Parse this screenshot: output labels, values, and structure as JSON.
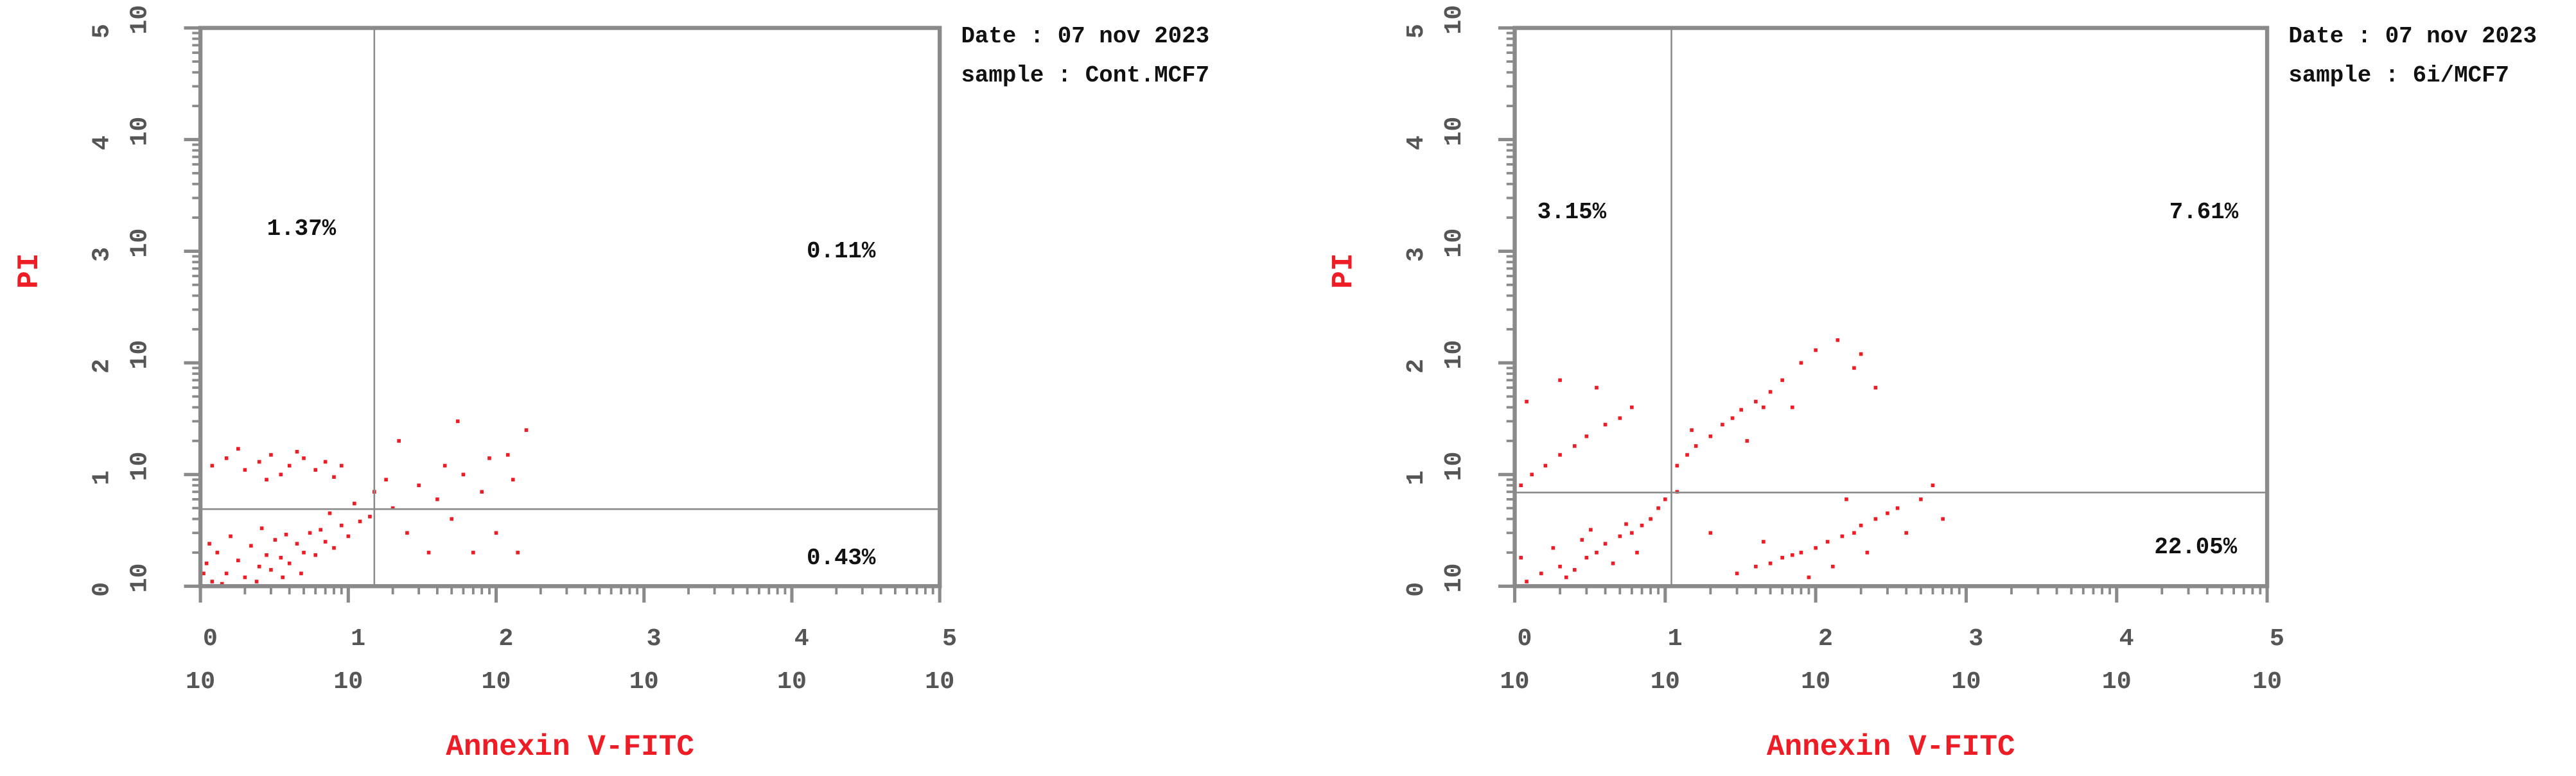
{
  "chart_data": [
    {
      "type": "scatter",
      "header": [
        "Date : 07 nov 2023",
        "sample : Cont.MCF7"
      ],
      "x_label": "Annexin V-FITC",
      "y_label": "PI",
      "log_scale": true,
      "color": "#ee1c24",
      "xlim": [
        1,
        100000
      ],
      "ylim": [
        1,
        100000
      ],
      "xticks": [
        {
          "value": 1,
          "label": "10",
          "exponent": "0"
        },
        {
          "value": 10,
          "label": "10",
          "exponent": "1"
        },
        {
          "value": 100,
          "label": "10",
          "exponent": "2"
        },
        {
          "value": 1000,
          "label": "10",
          "exponent": "3"
        },
        {
          "value": 10000,
          "label": "10",
          "exponent": "4"
        },
        {
          "value": 100000,
          "label": "10",
          "exponent": "5"
        }
      ],
      "yticks": [
        {
          "value": 1,
          "label": "10",
          "exponent": "0"
        },
        {
          "value": 10,
          "label": "10",
          "exponent": "1"
        },
        {
          "value": 100,
          "label": "10",
          "exponent": "2"
        },
        {
          "value": 1000,
          "label": "10",
          "exponent": "3"
        },
        {
          "value": 10000,
          "label": "10",
          "exponent": "4"
        },
        {
          "value": 100000,
          "label": "10",
          "exponent": "5"
        }
      ],
      "gate_x": 15,
      "gate_y": 4.9,
      "quadrant_labels": [
        "1.37%",
        "0.11%",
        "0.43%"
      ],
      "x": [
        1.2,
        1.5,
        2,
        2.5,
        3,
        3.5,
        4,
        5,
        6,
        7,
        8,
        1.1,
        1.3,
        1.8,
        2.2,
        2.8,
        3.2,
        4.5,
        5.5,
        6.5,
        9,
        10,
        12,
        1.4,
        2.4,
        3.6,
        4.8,
        1.6,
        2.6,
        3.8,
        1.05,
        1.15,
        7.5,
        11,
        14,
        1.2,
        1.5,
        2,
        2.5,
        3,
        3.5,
        4,
        5,
        6,
        7,
        9,
        1.8,
        2.8,
        4.5,
        8,
        15,
        18,
        20,
        25,
        30,
        35,
        40,
        45,
        50,
        60,
        70,
        80,
        100,
        120,
        140,
        160,
        130,
        90,
        22,
        55
      ],
      "y": [
        1.1,
        1.3,
        1.2,
        1.5,
        1.4,
        1.8,
        1.6,
        2,
        1.9,
        2.5,
        2.2,
        1.6,
        2,
        1.7,
        2.3,
        1.9,
        2.6,
        2.4,
        3,
        3.2,
        3.5,
        2.8,
        3.8,
        1.05,
        1.1,
        1.2,
        1.3,
        2.8,
        3.3,
        2.9,
        1.3,
        2.4,
        4.5,
        5.5,
        4.2,
        12,
        14,
        11,
        13,
        15,
        10,
        12,
        14,
        11,
        13,
        12,
        17,
        9,
        16,
        9.5,
        7,
        9,
        5,
        3,
        8,
        2,
        6,
        12,
        4,
        10,
        2,
        7,
        3,
        15,
        2,
        25,
        9,
        14,
        20,
        30
      ]
    },
    {
      "type": "scatter",
      "header": [
        "Date : 07 nov 2023",
        "sample : 6i/MCF7"
      ],
      "x_label": "Annexin V-FITC",
      "y_label": "PI",
      "log_scale": true,
      "color": "#ee1c24",
      "xlim": [
        1,
        100000
      ],
      "ylim": [
        1,
        100000
      ],
      "xticks": [
        {
          "value": 1,
          "label": "10",
          "exponent": "0"
        },
        {
          "value": 10,
          "label": "10",
          "exponent": "1"
        },
        {
          "value": 100,
          "label": "10",
          "exponent": "2"
        },
        {
          "value": 1000,
          "label": "10",
          "exponent": "3"
        },
        {
          "value": 10000,
          "label": "10",
          "exponent": "4"
        },
        {
          "value": 100000,
          "label": "10",
          "exponent": "5"
        }
      ],
      "yticks": [
        {
          "value": 1,
          "label": "10",
          "exponent": "0"
        },
        {
          "value": 10,
          "label": "10",
          "exponent": "1"
        },
        {
          "value": 100,
          "label": "10",
          "exponent": "2"
        },
        {
          "value": 1000,
          "label": "10",
          "exponent": "3"
        },
        {
          "value": 10000,
          "label": "10",
          "exponent": "4"
        },
        {
          "value": 100000,
          "label": "10",
          "exponent": "5"
        }
      ],
      "gate_x": 11,
      "gate_y": 6.9,
      "quadrant_labels": [
        "3.15%",
        "7.61%",
        "22.05%"
      ],
      "x": [
        1.2,
        1.5,
        2,
        2.5,
        3,
        3.5,
        4,
        5,
        6,
        7,
        8,
        1.1,
        1.8,
        2.2,
        2.8,
        4.5,
        5.5,
        9,
        10,
        12,
        6.5,
        3.2,
        1.1,
        1.3,
        1.6,
        2,
        2.5,
        3,
        4,
        5,
        1.2,
        3.5,
        6,
        2,
        12,
        14,
        16,
        20,
        24,
        28,
        32,
        40,
        45,
        50,
        60,
        80,
        100,
        140,
        200,
        180,
        250,
        15,
        35,
        70,
        30,
        40,
        50,
        60,
        70,
        80,
        100,
        120,
        150,
        180,
        200,
        250,
        300,
        350,
        400,
        500,
        700,
        130,
        90,
        220,
        20,
        600,
        45,
        160
      ],
      "y": [
        1.1,
        1.3,
        1.5,
        1.4,
        1.8,
        2,
        2.4,
        2.8,
        3,
        3.5,
        4,
        1.8,
        2.2,
        1.2,
        2.6,
        1.6,
        3.6,
        5,
        6,
        7,
        2,
        3.2,
        8,
        10,
        12,
        15,
        18,
        22,
        28,
        32,
        45,
        60,
        40,
        70,
        12,
        15,
        18,
        22,
        28,
        32,
        38,
        45,
        40,
        55,
        70,
        100,
        130,
        160,
        120,
        90,
        60,
        25,
        20,
        40,
        1.3,
        1.5,
        1.6,
        1.8,
        1.9,
        2,
        2.2,
        2.5,
        2.8,
        3,
        3.5,
        4,
        4.5,
        5,
        3,
        6,
        4,
        1.5,
        1.2,
        2,
        3,
        8,
        2.5,
        6
      ]
    }
  ]
}
